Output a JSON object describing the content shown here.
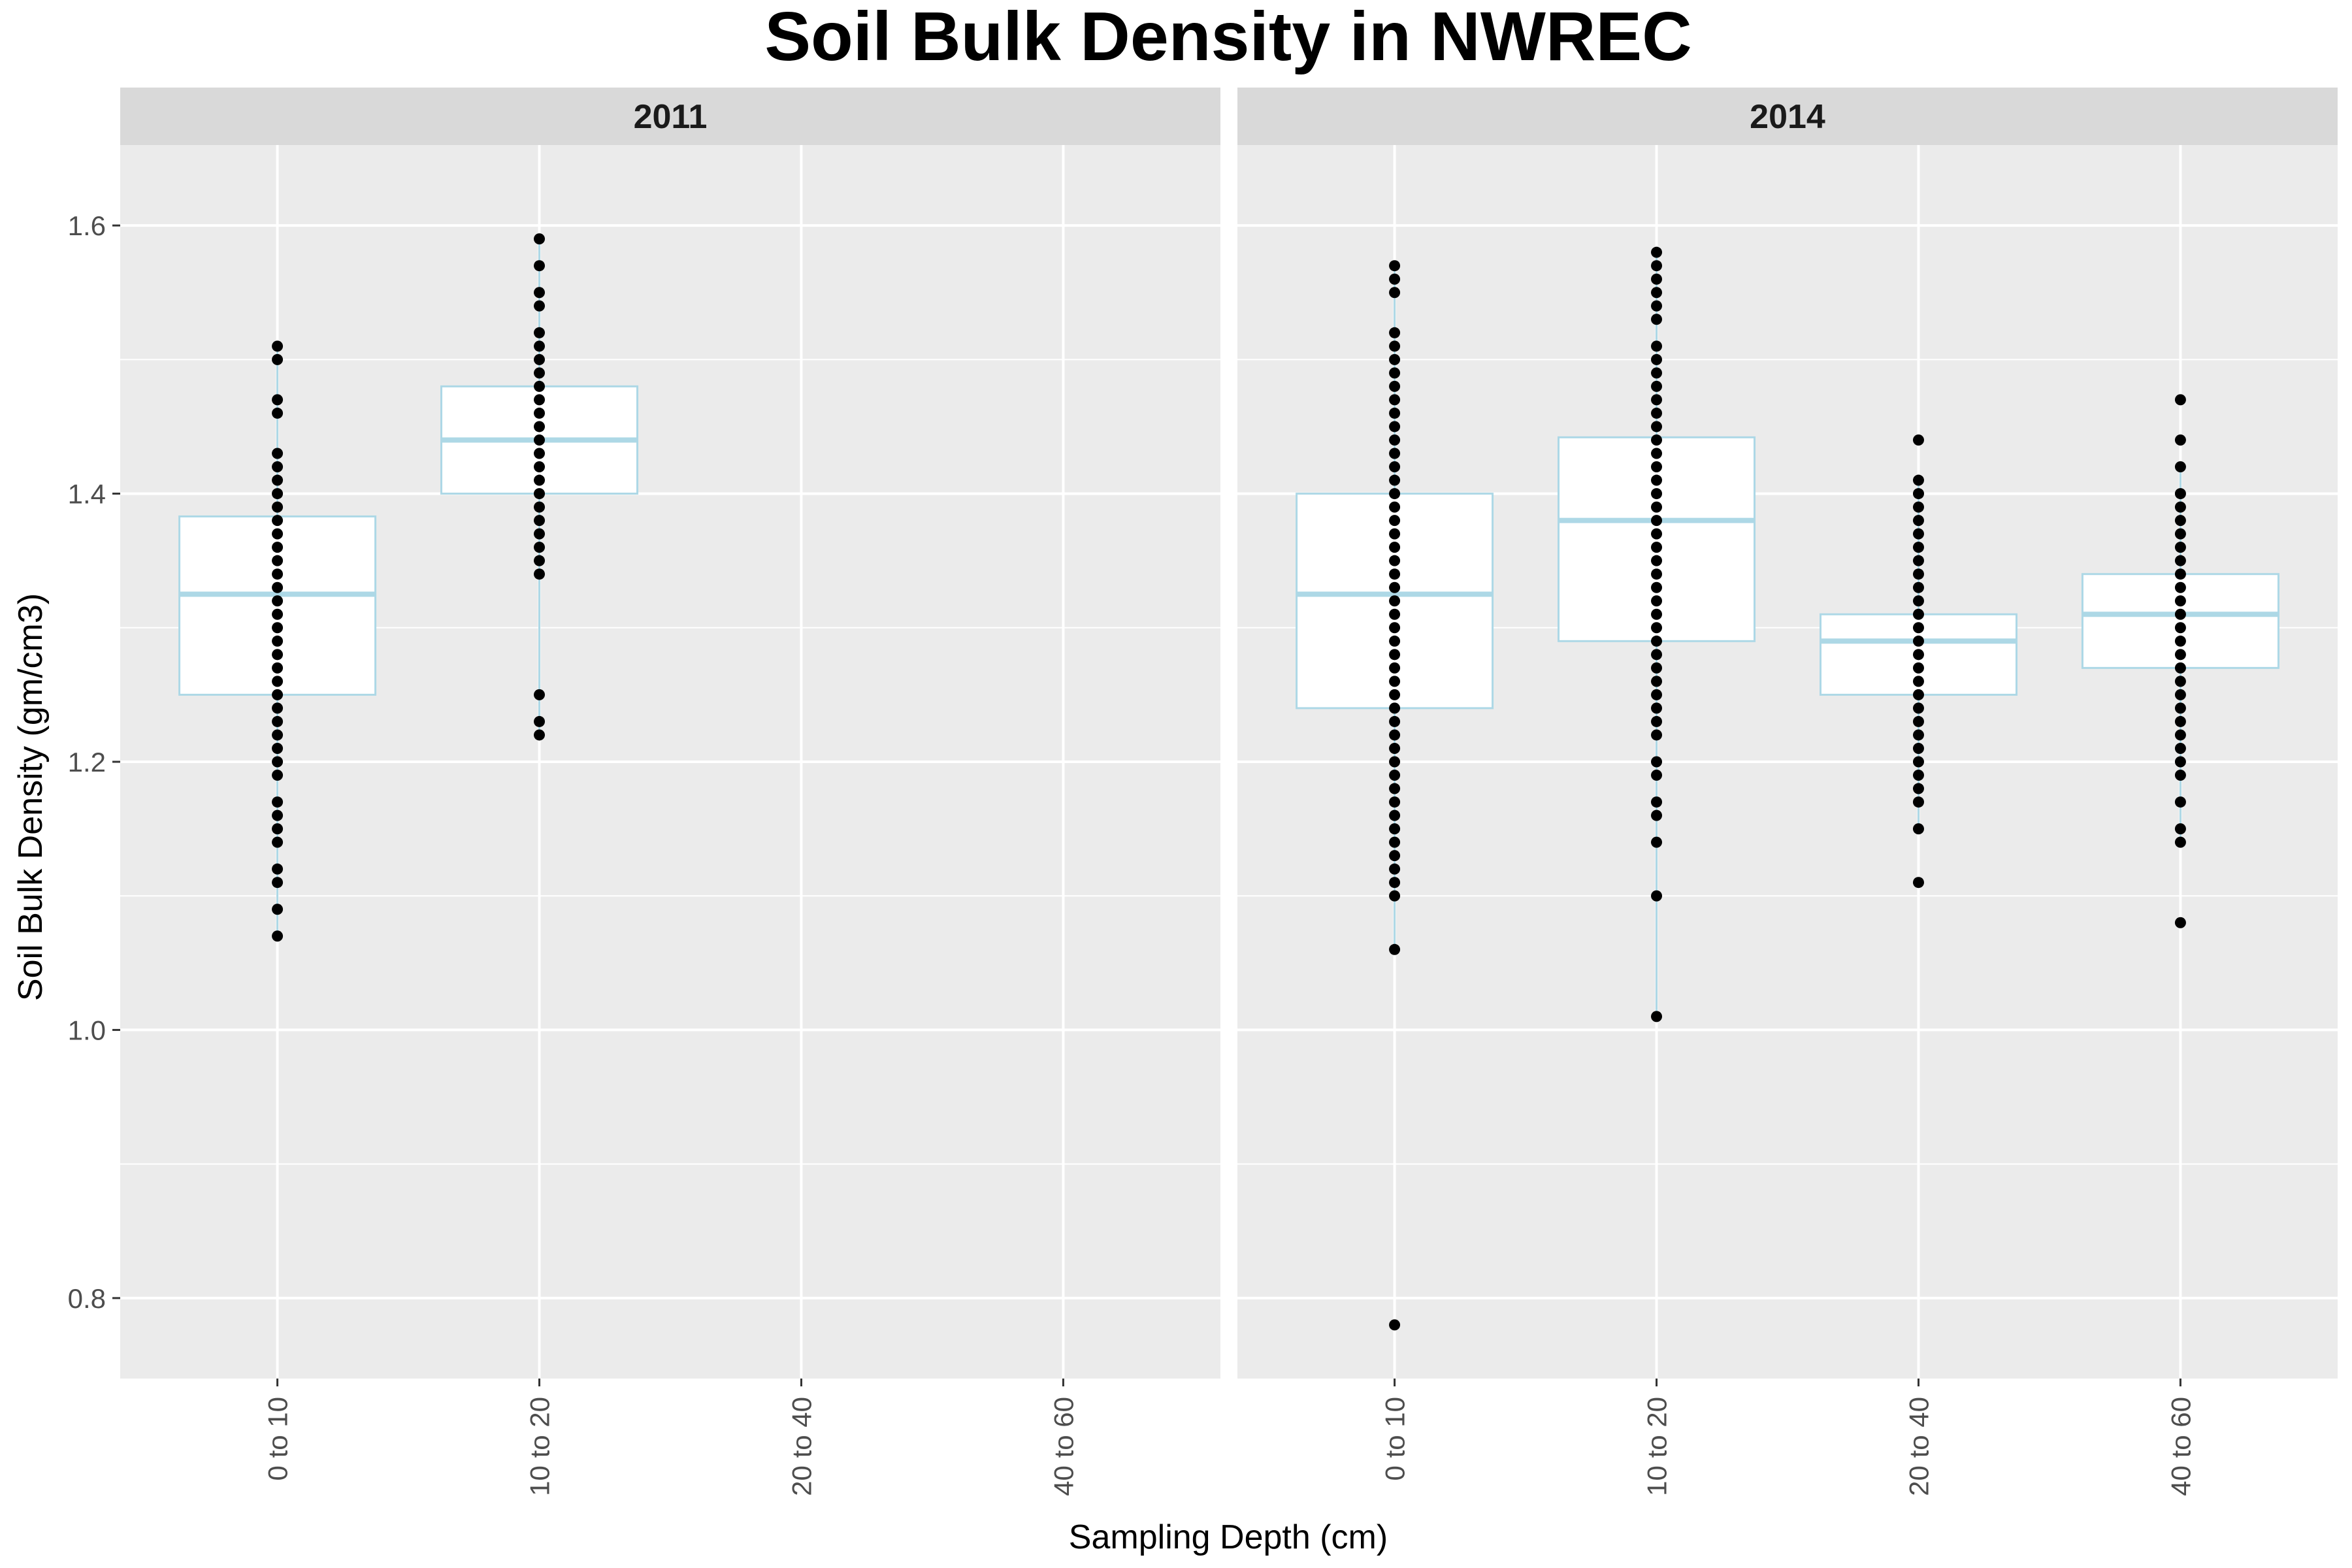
{
  "chart_data": {
    "type": "boxplot",
    "title": "Soil Bulk Density in NWREC",
    "xlabel": "Sampling Depth (cm)",
    "ylabel": "Soil Bulk Density (gm/cm3)",
    "ylim": [
      0.74,
      1.66
    ],
    "yticks": [
      "0.8",
      "1.0",
      "1.2",
      "1.4",
      "1.6"
    ],
    "categories": [
      "0 to 10",
      "10 to 20",
      "20 to 40",
      "40 to 60"
    ],
    "grid": true,
    "colors": {
      "panel_bg": "#ebebeb",
      "strip_bg": "#d9d9d9",
      "grid": "#ffffff",
      "box_stroke": "#add8e6",
      "box_fill": "#ffffff",
      "point": "#000000"
    },
    "panels": [
      {
        "label": "2011",
        "boxes": [
          {
            "category": "0 to 10",
            "lower_whisker": 1.07,
            "q1": 1.25,
            "median": 1.325,
            "q3": 1.383,
            "upper_whisker": 1.51,
            "points": [
              1.07,
              1.09,
              1.11,
              1.12,
              1.14,
              1.15,
              1.16,
              1.17,
              1.19,
              1.2,
              1.21,
              1.22,
              1.23,
              1.24,
              1.25,
              1.26,
              1.27,
              1.28,
              1.29,
              1.3,
              1.31,
              1.32,
              1.33,
              1.34,
              1.35,
              1.36,
              1.37,
              1.38,
              1.39,
              1.4,
              1.41,
              1.42,
              1.43,
              1.46,
              1.47,
              1.5,
              1.51
            ]
          },
          {
            "category": "10 to 20",
            "lower_whisker": 1.22,
            "q1": 1.4,
            "median": 1.44,
            "q3": 1.48,
            "upper_whisker": 1.59,
            "points": [
              1.22,
              1.23,
              1.25,
              1.34,
              1.35,
              1.36,
              1.37,
              1.38,
              1.39,
              1.4,
              1.41,
              1.42,
              1.43,
              1.44,
              1.45,
              1.46,
              1.47,
              1.48,
              1.49,
              1.5,
              1.51,
              1.52,
              1.54,
              1.55,
              1.57,
              1.59
            ]
          }
        ]
      },
      {
        "label": "2014",
        "boxes": [
          {
            "category": "0 to 10",
            "lower_whisker": 1.06,
            "q1": 1.24,
            "median": 1.325,
            "q3": 1.4,
            "upper_whisker": 1.57,
            "points": [
              0.78,
              1.06,
              1.1,
              1.11,
              1.12,
              1.13,
              1.14,
              1.15,
              1.16,
              1.17,
              1.18,
              1.19,
              1.2,
              1.21,
              1.22,
              1.23,
              1.24,
              1.25,
              1.26,
              1.27,
              1.28,
              1.29,
              1.3,
              1.31,
              1.32,
              1.33,
              1.34,
              1.35,
              1.36,
              1.37,
              1.38,
              1.39,
              1.4,
              1.41,
              1.42,
              1.43,
              1.44,
              1.45,
              1.46,
              1.47,
              1.48,
              1.49,
              1.5,
              1.51,
              1.52,
              1.55,
              1.56,
              1.57
            ]
          },
          {
            "category": "10 to 20",
            "lower_whisker": 1.01,
            "q1": 1.29,
            "median": 1.38,
            "q3": 1.442,
            "upper_whisker": 1.58,
            "points": [
              1.01,
              1.1,
              1.14,
              1.16,
              1.17,
              1.19,
              1.2,
              1.22,
              1.23,
              1.24,
              1.25,
              1.26,
              1.27,
              1.28,
              1.29,
              1.3,
              1.31,
              1.32,
              1.33,
              1.34,
              1.35,
              1.36,
              1.37,
              1.38,
              1.39,
              1.4,
              1.41,
              1.42,
              1.43,
              1.44,
              1.45,
              1.46,
              1.47,
              1.48,
              1.49,
              1.5,
              1.51,
              1.53,
              1.54,
              1.55,
              1.56,
              1.57,
              1.58
            ]
          },
          {
            "category": "20 to 40",
            "lower_whisker": 1.15,
            "q1": 1.25,
            "median": 1.29,
            "q3": 1.31,
            "upper_whisker": 1.41,
            "points": [
              1.11,
              1.15,
              1.17,
              1.18,
              1.19,
              1.2,
              1.21,
              1.22,
              1.23,
              1.24,
              1.25,
              1.26,
              1.27,
              1.28,
              1.29,
              1.3,
              1.31,
              1.32,
              1.33,
              1.34,
              1.35,
              1.36,
              1.37,
              1.38,
              1.39,
              1.4,
              1.41,
              1.44
            ]
          },
          {
            "category": "40 to 60",
            "lower_whisker": 1.14,
            "q1": 1.27,
            "median": 1.31,
            "q3": 1.34,
            "upper_whisker": 1.42,
            "points": [
              1.08,
              1.14,
              1.15,
              1.17,
              1.19,
              1.2,
              1.21,
              1.22,
              1.23,
              1.24,
              1.25,
              1.26,
              1.27,
              1.28,
              1.29,
              1.3,
              1.31,
              1.32,
              1.33,
              1.34,
              1.35,
              1.36,
              1.37,
              1.38,
              1.39,
              1.4,
              1.42,
              1.44,
              1.47
            ]
          }
        ]
      }
    ]
  }
}
